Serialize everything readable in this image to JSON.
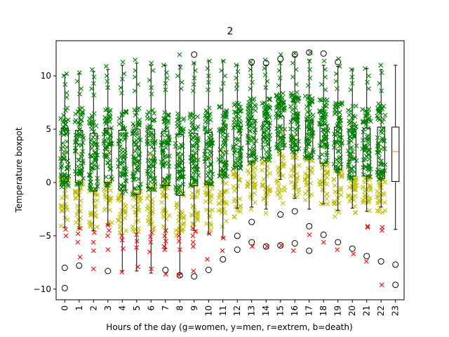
{
  "chart_data": {
    "type": "box",
    "title": "2",
    "xlabel": "Hours of the day (g=women, y=men, r=extrem, b=death)",
    "ylabel": "Temperature boxpot",
    "categories": [
      "0",
      "1",
      "2",
      "3",
      "4",
      "5",
      "6",
      "7",
      "8",
      "9",
      "10",
      "11",
      "12",
      "13",
      "14",
      "15",
      "16",
      "17",
      "18",
      "19",
      "20",
      "21",
      "22",
      "23"
    ],
    "yticks": [
      -10,
      -5,
      0,
      5,
      10
    ],
    "ylim": [
      -11,
      13.3
    ],
    "xlim": [
      -0.6,
      23.6
    ],
    "grid": false,
    "colors": {
      "women": "#008000",
      "men": "#bfbf00",
      "extreme": "#ff0000",
      "death": "#000000",
      "median": "#ff7f0e"
    },
    "boxes": [
      {
        "hour": 0,
        "whislo": -4.2,
        "q1": 0.1,
        "med": 2.7,
        "q3": 5.1,
        "whishi": 10.1,
        "fliers": [
          -8.0,
          -9.9
        ]
      },
      {
        "hour": 1,
        "whislo": -4.3,
        "q1": 0.0,
        "med": 2.7,
        "q3": 4.9,
        "whishi": 10.2,
        "fliers": [
          -7.8
        ]
      },
      {
        "hour": 2,
        "whislo": -4.5,
        "q1": -0.8,
        "med": 2.0,
        "q3": 4.6,
        "whishi": 10.4,
        "fliers": []
      },
      {
        "hour": 3,
        "whislo": -4.0,
        "q1": 0.0,
        "med": 3.0,
        "q3": 5.1,
        "whishi": 10.6,
        "fliers": [
          -8.3
        ]
      },
      {
        "hour": 4,
        "whislo": -8.3,
        "q1": -0.7,
        "med": 2.5,
        "q3": 4.9,
        "whishi": 11.0,
        "fliers": []
      },
      {
        "hour": 5,
        "whislo": -8.3,
        "q1": -1.1,
        "med": 1.7,
        "q3": 5.0,
        "whishi": 11.2,
        "fliers": []
      },
      {
        "hour": 6,
        "whislo": -8.5,
        "q1": -0.5,
        "med": 2.5,
        "q3": 5.0,
        "whishi": 11.0,
        "fliers": []
      },
      {
        "hour": 7,
        "whislo": -6.2,
        "q1": -0.3,
        "med": 2.5,
        "q3": 4.8,
        "whishi": 11.0,
        "fliers": [
          -8.2
        ]
      },
      {
        "hour": 8,
        "whislo": -8.6,
        "q1": -1.2,
        "med": 2.0,
        "q3": 4.5,
        "whishi": 11.0,
        "fliers": [
          -8.7
        ]
      },
      {
        "hour": 9,
        "whislo": -4.5,
        "q1": -0.3,
        "med": 2.3,
        "q3": 4.6,
        "whishi": 11.2,
        "fliers": [
          -8.8,
          12.0
        ]
      },
      {
        "hour": 10,
        "whislo": -4.8,
        "q1": -0.2,
        "med": 2.3,
        "q3": 4.7,
        "whishi": 11.4,
        "fliers": [
          -8.2
        ]
      },
      {
        "hour": 11,
        "whislo": -5.2,
        "q1": 0.7,
        "med": 3.0,
        "q3": 5.0,
        "whishi": 11.4,
        "fliers": [
          -7.2
        ]
      },
      {
        "hour": 12,
        "whislo": -2.4,
        "q1": 1.5,
        "med": 3.2,
        "q3": 5.3,
        "whishi": 11.0,
        "fliers": [
          -5.0,
          -6.3
        ]
      },
      {
        "hour": 13,
        "whislo": -2.3,
        "q1": 2.0,
        "med": 4.2,
        "q3": 5.9,
        "whishi": 11.0,
        "fliers": [
          -3.7,
          -5.6,
          11.3
        ]
      },
      {
        "hour": 14,
        "whislo": -2.5,
        "q1": 2.3,
        "med": 4.2,
        "q3": 5.7,
        "whishi": 11.0,
        "fliers": [
          -6.0,
          11.2
        ]
      },
      {
        "hour": 15,
        "whislo": 0.3,
        "q1": 3.1,
        "med": 4.7,
        "q3": 6.2,
        "whishi": 11.3,
        "fliers": [
          -3.0,
          -5.9,
          11.6
        ]
      },
      {
        "hour": 16,
        "whislo": -1.5,
        "q1": 3.0,
        "med": 4.4,
        "q3": 6.0,
        "whishi": 11.8,
        "fliers": [
          -2.7,
          -5.7,
          12.0
        ]
      },
      {
        "hour": 17,
        "whislo": -2.5,
        "q1": 2.4,
        "med": 3.9,
        "q3": 5.8,
        "whishi": 11.5,
        "fliers": [
          -4.1,
          -6.4,
          12.2
        ]
      },
      {
        "hour": 18,
        "whislo": -2.0,
        "q1": 1.8,
        "med": 3.9,
        "q3": 5.4,
        "whishi": 11.0,
        "fliers": [
          -4.9,
          12.1
        ]
      },
      {
        "hour": 19,
        "whislo": -2.6,
        "q1": 1.2,
        "med": 3.3,
        "q3": 5.2,
        "whishi": 10.9,
        "fliers": [
          -5.6,
          11.3
        ]
      },
      {
        "hour": 20,
        "whislo": -2.4,
        "q1": 0.6,
        "med": 2.7,
        "q3": 5.0,
        "whishi": 10.6,
        "fliers": [
          -6.2
        ]
      },
      {
        "hour": 21,
        "whislo": -2.7,
        "q1": 0.6,
        "med": 3.1,
        "q3": 5.1,
        "whishi": 10.7,
        "fliers": [
          -6.9
        ]
      },
      {
        "hour": 22,
        "whislo": -2.3,
        "q1": 0.4,
        "med": 3.1,
        "q3": 5.2,
        "whishi": 10.6,
        "fliers": [
          -7.4
        ]
      },
      {
        "hour": 23,
        "whislo": -4.4,
        "q1": 0.1,
        "med": 2.9,
        "q3": 5.2,
        "whishi": 11.0,
        "fliers": [
          -7.7,
          -9.6
        ]
      }
    ],
    "women_spread": [
      {
        "hour": 0,
        "low": -0.5,
        "high": 7.0,
        "top": [
          10.2,
          10.0,
          9.2,
          8.4,
          8.0
        ]
      },
      {
        "hour": 1,
        "low": -0.2,
        "high": 7.0,
        "top": [
          10.3,
          9.5,
          8.8,
          8.3
        ]
      },
      {
        "hour": 2,
        "low": -1.0,
        "high": 6.5,
        "top": [
          10.6,
          9.9,
          9.3,
          8.8,
          8.2
        ]
      },
      {
        "hour": 3,
        "low": -0.3,
        "high": 7.0,
        "top": [
          10.9,
          10.0,
          9.5,
          8.9
        ]
      },
      {
        "hour": 4,
        "low": -1.0,
        "high": 6.8,
        "top": [
          11.3,
          10.2,
          9.7,
          8.9,
          8.4
        ]
      },
      {
        "hour": 5,
        "low": -1.3,
        "high": 7.0,
        "top": [
          11.5,
          10.5,
          9.9,
          9.2,
          8.6
        ]
      },
      {
        "hour": 6,
        "low": -0.8,
        "high": 7.0,
        "top": [
          11.2,
          10.5,
          9.6,
          8.9,
          8.3
        ]
      },
      {
        "hour": 7,
        "low": -0.5,
        "high": 6.8,
        "top": [
          11.0,
          10.3,
          9.8,
          9.3,
          8.7
        ]
      },
      {
        "hour": 8,
        "low": -1.3,
        "high": 6.5,
        "top": [
          12.0,
          10.8,
          10.0,
          9.4,
          8.8
        ]
      },
      {
        "hour": 9,
        "low": -0.5,
        "high": 6.5,
        "top": [
          11.2,
          10.5,
          9.8,
          9.2,
          8.6
        ]
      },
      {
        "hour": 10,
        "low": -0.5,
        "high": 7.0,
        "top": [
          11.4,
          10.7,
          10.0,
          9.4,
          8.7
        ]
      },
      {
        "hour": 11,
        "low": 0.5,
        "high": 7.2,
        "top": [
          11.4,
          10.5,
          10.0,
          9.3,
          8.7
        ]
      },
      {
        "hour": 12,
        "low": 1.2,
        "high": 7.5,
        "top": [
          11.0,
          10.4,
          9.8,
          9.2,
          8.8
        ]
      },
      {
        "hour": 13,
        "low": 1.8,
        "high": 8.0,
        "top": [
          11.3,
          10.6,
          10.0,
          9.4,
          8.8
        ]
      },
      {
        "hour": 14,
        "low": 2.0,
        "high": 8.0,
        "top": [
          11.5,
          10.7,
          10.1,
          9.5,
          8.9
        ]
      },
      {
        "hour": 15,
        "low": 2.8,
        "high": 8.5,
        "top": [
          12.0,
          11.2,
          10.5,
          9.8,
          9.1
        ]
      },
      {
        "hour": 16,
        "low": 2.7,
        "high": 8.5,
        "top": [
          12.1,
          11.2,
          10.6,
          9.9,
          9.2
        ]
      },
      {
        "hour": 17,
        "low": 2.2,
        "high": 8.2,
        "top": [
          12.2,
          11.4,
          10.6,
          9.8,
          9.1
        ]
      },
      {
        "hour": 18,
        "low": 1.6,
        "high": 7.8,
        "top": [
          11.4,
          10.6,
          9.9,
          9.2,
          8.7
        ]
      },
      {
        "hour": 19,
        "low": 1.0,
        "high": 7.5,
        "top": [
          11.6,
          10.9,
          10.2,
          9.5,
          8.8
        ]
      },
      {
        "hour": 20,
        "low": 0.4,
        "high": 7.2,
        "top": [
          10.6,
          9.9,
          9.3,
          8.7
        ]
      },
      {
        "hour": 21,
        "low": 0.4,
        "high": 7.4,
        "top": [
          10.7,
          10.0,
          9.4,
          8.8
        ]
      },
      {
        "hour": 22,
        "low": 0.2,
        "high": 7.4,
        "top": [
          11.0,
          10.3,
          9.3,
          8.6
        ]
      }
    ],
    "men_spread": [
      {
        "hour": 0,
        "low": -4.2,
        "high": 0.5
      },
      {
        "hour": 1,
        "low": -4.5,
        "high": 0.3
      },
      {
        "hour": 2,
        "low": -4.7,
        "high": -0.3
      },
      {
        "hour": 3,
        "low": -4.2,
        "high": 0.3
      },
      {
        "hour": 4,
        "low": -4.8,
        "high": -0.3
      },
      {
        "hour": 5,
        "low": -4.9,
        "high": -0.6
      },
      {
        "hour": 6,
        "low": -4.7,
        "high": -0.2
      },
      {
        "hour": 7,
        "low": -4.7,
        "high": 0.0
      },
      {
        "hour": 8,
        "low": -5.0,
        "high": -0.7
      },
      {
        "hour": 9,
        "low": -4.6,
        "high": 0.0
      },
      {
        "hour": 10,
        "low": -4.6,
        "high": 0.1
      },
      {
        "hour": 11,
        "low": -4.2,
        "high": 0.9
      },
      {
        "hour": 12,
        "low": -3.7,
        "high": 1.6
      },
      {
        "hour": 13,
        "low": -2.6,
        "high": 2.1
      },
      {
        "hour": 14,
        "low": -3.0,
        "high": 2.4
      },
      {
        "hour": 15,
        "low": -2.0,
        "high": 3.2
      },
      {
        "hour": 16,
        "low": -1.6,
        "high": 3.1
      },
      {
        "hour": 17,
        "low": -2.6,
        "high": 2.5
      },
      {
        "hour": 18,
        "low": -2.2,
        "high": 1.9
      },
      {
        "hour": 19,
        "low": -3.4,
        "high": 1.3
      },
      {
        "hour": 20,
        "low": -3.0,
        "high": 0.7
      },
      {
        "hour": 21,
        "low": -3.1,
        "high": 0.7
      },
      {
        "hour": 22,
        "low": -3.0,
        "high": 0.5
      }
    ],
    "extreme_points": [
      {
        "hour": 0,
        "y": [
          -4.4,
          -5.0
        ]
      },
      {
        "hour": 1,
        "y": [
          -4.3,
          -4.8,
          -5.6,
          -7.0
        ]
      },
      {
        "hour": 2,
        "y": [
          -4.7,
          -5.6,
          -6.4,
          -8.1
        ]
      },
      {
        "hour": 3,
        "y": [
          -4.0,
          -4.5,
          -5.0,
          -6.3
        ]
      },
      {
        "hour": 4,
        "y": [
          -5.0,
          -5.4,
          -6.2,
          -8.4
        ]
      },
      {
        "hour": 5,
        "y": [
          -4.9,
          -5.5,
          -6.1,
          -7.9
        ]
      },
      {
        "hour": 6,
        "y": [
          -4.7,
          -5.1,
          -5.6,
          -6.5,
          -8.1
        ]
      },
      {
        "hour": 7,
        "y": [
          -4.5,
          -5.0,
          -5.5,
          -6.0,
          -6.3,
          -8.6
        ]
      },
      {
        "hour": 8,
        "y": [
          -5.0,
          -5.5,
          -6.3,
          -8.7
        ]
      },
      {
        "hour": 9,
        "y": [
          -4.3,
          -4.6,
          -5.0,
          -5.6,
          -6.0,
          -8.3
        ]
      },
      {
        "hour": 10,
        "y": [
          -4.8,
          -7.2
        ]
      },
      {
        "hour": 11,
        "y": [
          -5.2,
          -6.4
        ]
      },
      {
        "hour": 13,
        "y": [
          -6.0
        ]
      },
      {
        "hour": 14,
        "y": [
          -6.0
        ]
      },
      {
        "hour": 15,
        "y": [
          -5.9
        ]
      },
      {
        "hour": 16,
        "y": [
          -6.4
        ]
      },
      {
        "hour": 17,
        "y": [
          -4.9
        ]
      },
      {
        "hour": 18,
        "y": [
          -5.6
        ]
      },
      {
        "hour": 19,
        "y": [
          -6.3
        ]
      },
      {
        "hour": 20,
        "y": [
          -6.7
        ]
      },
      {
        "hour": 21,
        "y": [
          -4.1,
          -4.2,
          -7.4
        ]
      },
      {
        "hour": 22,
        "y": [
          -4.2,
          -4.5,
          -9.6
        ]
      }
    ]
  }
}
